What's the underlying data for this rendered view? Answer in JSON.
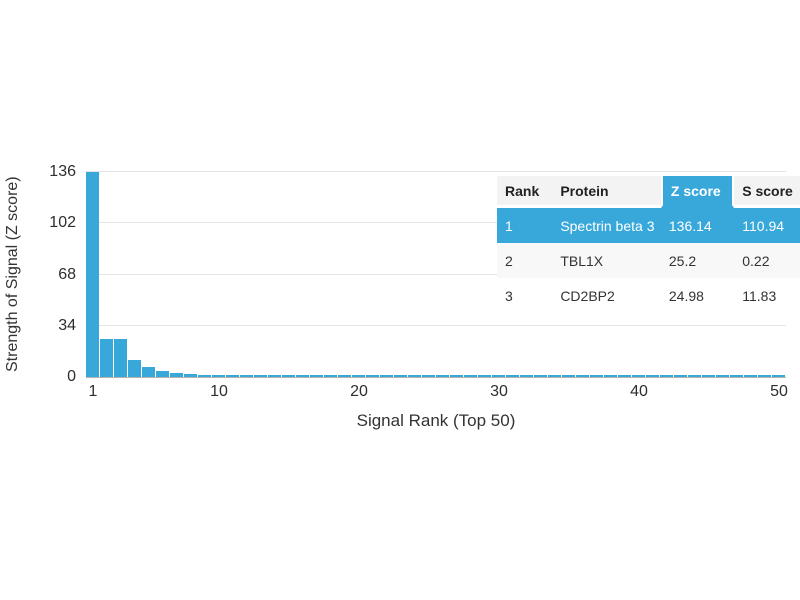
{
  "figure": {
    "background": "#ffffff"
  },
  "colors": {
    "bar": "#38a8da",
    "table_highlight": "#38a8da",
    "gridline": "#e4e4e4",
    "axis_line": "#b3b3b3"
  },
  "chart_data": {
    "type": "bar",
    "title": "",
    "xlabel": "Signal Rank (Top 50)",
    "ylabel": "Strength of Signal (Z score)",
    "ylim": [
      0,
      136
    ],
    "yticks": [
      0,
      34,
      68,
      102,
      136
    ],
    "xticks": [
      1,
      10,
      20,
      30,
      40,
      50
    ],
    "grid": "horizontal",
    "x": [
      1,
      2,
      3,
      4,
      5,
      6,
      7,
      8,
      9,
      10,
      11,
      12,
      13,
      14,
      15,
      16,
      17,
      18,
      19,
      20,
      21,
      22,
      23,
      24,
      25,
      26,
      27,
      28,
      29,
      30,
      31,
      32,
      33,
      34,
      35,
      36,
      37,
      38,
      39,
      40,
      41,
      42,
      43,
      44,
      45,
      46,
      47,
      48,
      49,
      50
    ],
    "values": [
      136.14,
      25.2,
      24.98,
      11.5,
      6.5,
      4.2,
      2.8,
      2.0,
      1.6,
      1.3,
      1.1,
      1.0,
      0.95,
      0.9,
      0.85,
      0.8,
      0.79,
      0.78,
      0.76,
      0.75,
      0.74,
      0.72,
      0.71,
      0.7,
      0.68,
      0.67,
      0.66,
      0.65,
      0.63,
      0.62,
      0.61,
      0.6,
      0.58,
      0.57,
      0.56,
      0.55,
      0.53,
      0.52,
      0.51,
      0.5,
      0.49,
      0.48,
      0.47,
      0.46,
      0.45,
      0.44,
      0.43,
      0.42,
      0.41,
      0.4
    ]
  },
  "table": {
    "headers": {
      "rank": "Rank",
      "protein": "Protein",
      "z_score": "Z score",
      "s_score": "S score"
    },
    "highlighted_column": "Z score",
    "highlighted_row_rank": "1",
    "rows": [
      {
        "rank": "1",
        "protein": "Spectrin beta 3",
        "z_score": "136.14",
        "s_score": "110.94"
      },
      {
        "rank": "2",
        "protein": "TBL1X",
        "z_score": "25.2",
        "s_score": "0.22"
      },
      {
        "rank": "3",
        "protein": "CD2BP2",
        "z_score": "24.98",
        "s_score": "11.83"
      }
    ]
  }
}
